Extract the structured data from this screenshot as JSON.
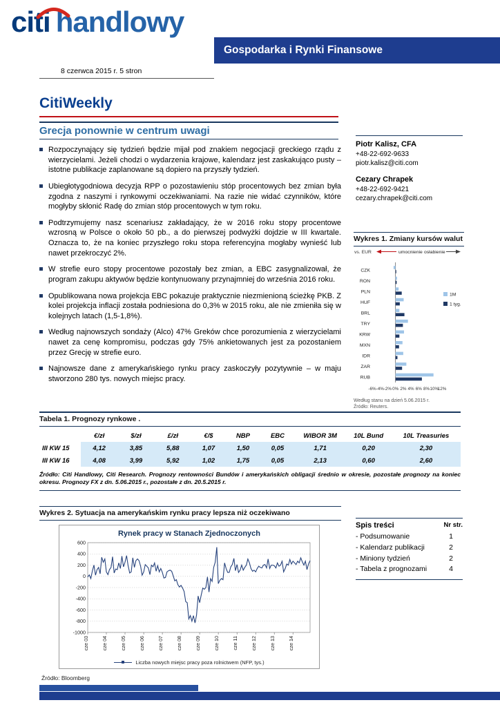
{
  "page": {
    "logo_citi": "citi",
    "logo_handlowy": "handlowy",
    "banner": "Gospodarka i Rynki Finansowe",
    "dateline": "8 czerwca 2015 r. 5 stron"
  },
  "title": "CitiWeekly",
  "subtitle": "Grecja ponownie w centrum uwagi",
  "bullets": [
    "Rozpoczynający się tydzień będzie mijał pod znakiem negocjacji greckiego rządu z wierzycielami. Jeżeli chodzi o wydarzenia krajowe, kalendarz jest zaskakująco pusty – istotne publikacje zaplanowane są dopiero na przyszły tydzień.",
    "Ubiegłotygodniowa decyzja RPP o pozostawieniu stóp procentowych bez zmian była zgodna z naszymi i rynkowymi oczekiwaniami. Na razie nie widać czynników, które mogłyby skłonić Radę do zmian stóp procentowych w tym roku.",
    "Podtrzymujemy nasz scenariusz zakładający, że w 2016 roku stopy procentowe wzrosną w Polsce o około 50 pb., a do pierwszej podwyżki dojdzie w III kwartale. Oznacza to, że na koniec przyszłego roku stopa referencyjna mogłaby wynieść lub nawet przekroczyć 2%.",
    "W strefie euro stopy procentowe pozostały bez zmian, a EBC zasygnalizował, że program zakupu aktywów będzie kontynuowany przynajmniej do września 2016 roku.",
    "Opublikowana nowa projekcja EBC pokazuje praktycznie niezmienioną ścieżkę PKB. Z kolei projekcja inflacji została podniesiona do 0,3% w 2015 roku, ale nie zmieniła się w kolejnych latach (1,5-1,8%).",
    "Według najnowszych sondaży (Alco) 47% Greków chce porozumienia z wierzycielami nawet za cenę kompromisu, podczas gdy 75% ankietowanych jest za pozostaniem przez Grecję w strefie euro.",
    "Najnowsze dane z amerykańskiego rynku pracy zaskoczyły pozytywnie – w maju stworzono 280 tys. nowych miejsc pracy."
  ],
  "contacts": [
    {
      "name": "Piotr Kalisz, CFA",
      "phone": "+48-22-692-9633",
      "email": "piotr.kalisz@citi.com"
    },
    {
      "name": "Cezary Chrapek",
      "phone": "+48-22-692-9421",
      "email": "cezary.chrapek@citi.com"
    }
  ],
  "sections": {
    "wykres1_title": "Wykres 1. Zmiany kursów walut",
    "tabela1_title": "Tabela 1. Prognozy rynkowe .",
    "wykres2_title": "Wykres 2. Sytuacja na amerykańskim rynku pracy lepsza niż oczekiwano",
    "toc_title": "Spis treści",
    "toc_col": "Nr str."
  },
  "chart1_notes": [
    "Według stanu na dzień 5.06.2015 r.",
    "Źródło: Reuters."
  ],
  "table1": {
    "columns": [
      "",
      "€/zł",
      "$/zł",
      "£/zł",
      "€/$",
      "NBP",
      "EBC",
      "WIBOR 3M",
      "10L Bund",
      "10L Treasuries"
    ],
    "rows": [
      {
        "label": "III KW 15",
        "values": [
          "4,12",
          "3,85",
          "5,88",
          "1,07",
          "1,50",
          "0,05",
          "1,71",
          "0,20",
          "2,30"
        ]
      },
      {
        "label": "III KW 16",
        "values": [
          "4,08",
          "3,99",
          "5,92",
          "1,02",
          "1,75",
          "0,05",
          "2,13",
          "0,60",
          "2,60"
        ]
      }
    ],
    "source": "Źródło: Citi Handlowy, Citi Research. Prognozy rentowności Bundów i amerykańskich obligacji średnio w okresie, pozostałe prognozy na koniec okresu. Prognozy FX z dn. 5.06.2015 r., pozostałe z dn. 20.5.2015 r."
  },
  "chart2_source": "Źródło: Bloomberg",
  "toc_items": [
    {
      "label": "- Podsumowanie",
      "page": "1"
    },
    {
      "label": "- Kalendarz publikacji",
      "page": "2"
    },
    {
      "label": "- Miniony tydzień",
      "page": "2"
    },
    {
      "label": "- Tabela z prognozami",
      "page": "4"
    }
  ],
  "chart_data": [
    {
      "type": "bar",
      "orientation": "horizontal",
      "title": "Zmiany kursów walut",
      "annotations": {
        "vs": "vs. EUR",
        "left": "umocnienie",
        "right": "osłabienie"
      },
      "categories": [
        "CZK",
        "RON",
        "PLN",
        "HUF",
        "BRL",
        "TRY",
        "KRW",
        "MXN",
        "IDR",
        "ZAR",
        "RUB"
      ],
      "series": [
        {
          "name": "1M",
          "color": "#9fc5e8",
          "values": [
            -0.5,
            0.4,
            0.8,
            2.1,
            1.0,
            3.2,
            2.2,
            1.8,
            2.0,
            2.8,
            9.8
          ]
        },
        {
          "name": "1 tyg.",
          "color": "#1f3864",
          "values": [
            0.2,
            0.3,
            1.6,
            1.1,
            2.3,
            1.9,
            1.0,
            0.9,
            0.5,
            1.7,
            6.8
          ]
        }
      ],
      "xlim": [
        -6,
        12
      ],
      "xticks": [
        "-6%",
        "-4%",
        "-2%",
        "0%",
        "2%",
        "4%",
        "6%",
        "8%",
        "10%",
        "12%"
      ],
      "xtick_values": [
        -6,
        -4,
        -2,
        0,
        2,
        4,
        6,
        8,
        10,
        12
      ],
      "legend_position": "right"
    },
    {
      "type": "line",
      "title": "Rynek pracy w Stanach Zjednoczonych",
      "series_name": "Liczba nowych miejsc pracy poza rolnictwem (NFP, tys.)",
      "color": "#26427c",
      "ylim": [
        -1000,
        600
      ],
      "ytick_step": 200,
      "xtick_labels": [
        "cze 03",
        "cze 04",
        "cze 05",
        "cze 06",
        "cze 07",
        "cze 08",
        "cze 09",
        "cze 10",
        "cze 11",
        "cze 12",
        "cze 13",
        "cze 14"
      ],
      "xtick_every": 12,
      "values": [
        -10,
        25,
        -40,
        100,
        200,
        20,
        120,
        160,
        45,
        340,
        250,
        310,
        80,
        30,
        120,
        160,
        350,
        60,
        130,
        120,
        240,
        140,
        360,
        170,
        250,
        370,
        190,
        60,
        80,
        330,
        160,
        280,
        310,
        280,
        180,
        20,
        80,
        210,
        180,
        150,
        30,
        200,
        170,
        240,
        90,
        190,
        80,
        140,
        70,
        -30,
        -20,
        80,
        100,
        110,
        90,
        10,
        -80,
        -60,
        -150,
        -190,
        -160,
        -210,
        -270,
        -450,
        -470,
        -760,
        -700,
        -800,
        -700,
        -830,
        -690,
        -350,
        -470,
        -330,
        -210,
        -230,
        -200,
        -10,
        -280,
        -40,
        -90,
        160,
        250,
        520,
        -130,
        -70,
        -40,
        -60,
        240,
        140,
        70,
        70,
        170,
        210,
        320,
        100,
        210,
        70,
        110,
        200,
        110,
        160,
        200,
        310,
        240,
        140,
        90,
        110,
        80,
        140,
        180,
        160,
        150,
        200,
        210,
        150,
        310,
        140,
        200,
        200,
        190,
        150,
        240,
        180,
        200,
        270,
        80,
        140,
        220,
        200,
        300,
        220,
        270,
        240,
        210,
        270,
        240,
        330,
        260,
        200,
        270,
        120,
        220,
        280
      ]
    }
  ]
}
